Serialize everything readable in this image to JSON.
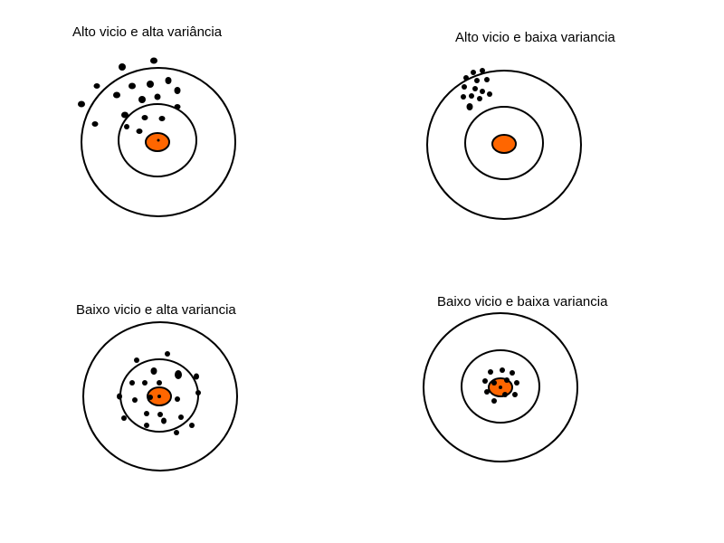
{
  "panels": [
    {
      "title": "Alto vicio e alta variância"
    },
    {
      "title": "Alto vicio e baixa variancia"
    },
    {
      "title": "Baixo vicio e alta variancia"
    },
    {
      "title": "Baixo vicio e baixa variancia"
    }
  ],
  "colors": {
    "ring": "#000000",
    "bullseye": "#ff6600",
    "shot": "#000000",
    "background": "#ffffff"
  }
}
